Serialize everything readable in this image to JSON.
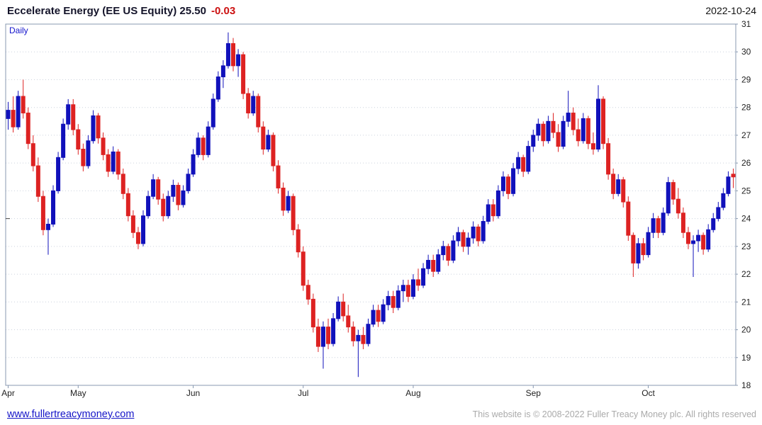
{
  "header": {
    "title": "Eccelerate Energy (EE US Equity) 25.50",
    "change": "-0.03",
    "date": "2022-10-24"
  },
  "footer": {
    "site": "www.fullertreacymoney.com",
    "copyright": "This website is © 2008-2022 Fuller Treacy Money plc. All rights reserved"
  },
  "chart_data": {
    "type": "candlestick",
    "title": "Eccelerate Energy (EE US Equity)",
    "interval": "Daily",
    "last_price": 25.5,
    "change": -0.03,
    "date": "2022-10-24",
    "ylim": [
      18,
      31
    ],
    "y_ticks": [
      18,
      19,
      20,
      21,
      22,
      23,
      24,
      25,
      26,
      27,
      28,
      29,
      30,
      31
    ],
    "left_axis_tick": 24,
    "x_labels": [
      "Apr",
      "May",
      "Jun",
      "Jul",
      "Aug",
      "Sep",
      "Oct"
    ],
    "month_start_indices": [
      0,
      14,
      37,
      59,
      81,
      105,
      128
    ],
    "grid": "horizontal-dotted",
    "legend_position": "none",
    "colors": {
      "up": "#1111bb",
      "down": "#dd2222",
      "frame": "#8898b0",
      "grid": "#ccd2de",
      "accent": "#1414cc"
    },
    "ohlc": [
      [
        27.6,
        28.2,
        27.2,
        27.9
      ],
      [
        27.9,
        28.4,
        27.1,
        27.3
      ],
      [
        27.3,
        28.6,
        27.2,
        28.4
      ],
      [
        28.4,
        29.0,
        27.6,
        27.8
      ],
      [
        27.8,
        28.0,
        26.5,
        26.7
      ],
      [
        26.7,
        27.0,
        25.7,
        25.9
      ],
      [
        25.9,
        26.2,
        24.6,
        24.8
      ],
      [
        24.8,
        25.0,
        23.4,
        23.6
      ],
      [
        23.6,
        24.0,
        22.7,
        23.8
      ],
      [
        23.8,
        25.2,
        23.7,
        25.0
      ],
      [
        25.0,
        26.4,
        24.9,
        26.2
      ],
      [
        26.2,
        27.6,
        26.1,
        27.4
      ],
      [
        27.4,
        28.3,
        27.2,
        28.1
      ],
      [
        28.1,
        28.3,
        27.0,
        27.2
      ],
      [
        27.2,
        27.4,
        26.3,
        26.5
      ],
      [
        26.5,
        26.7,
        25.7,
        25.9
      ],
      [
        25.9,
        27.0,
        25.8,
        26.8
      ],
      [
        26.8,
        27.9,
        26.7,
        27.7
      ],
      [
        27.7,
        27.8,
        26.7,
        26.9
      ],
      [
        26.9,
        27.1,
        26.1,
        26.3
      ],
      [
        26.3,
        26.5,
        25.5,
        25.7
      ],
      [
        25.7,
        26.6,
        25.6,
        26.4
      ],
      [
        26.4,
        26.5,
        25.4,
        25.6
      ],
      [
        25.6,
        25.8,
        24.7,
        24.9
      ],
      [
        24.9,
        25.1,
        23.9,
        24.1
      ],
      [
        24.1,
        24.3,
        23.3,
        23.5
      ],
      [
        23.5,
        23.7,
        22.9,
        23.1
      ],
      [
        23.1,
        24.3,
        23.0,
        24.1
      ],
      [
        24.1,
        25.0,
        24.0,
        24.8
      ],
      [
        24.8,
        25.6,
        24.7,
        25.4
      ],
      [
        25.4,
        25.5,
        24.5,
        24.7
      ],
      [
        24.7,
        24.9,
        23.9,
        24.1
      ],
      [
        24.1,
        25.0,
        24.0,
        24.8
      ],
      [
        24.8,
        25.4,
        24.6,
        25.2
      ],
      [
        25.2,
        25.3,
        24.3,
        24.5
      ],
      [
        24.5,
        25.2,
        24.4,
        25.0
      ],
      [
        25.0,
        25.8,
        24.9,
        25.6
      ],
      [
        25.6,
        26.5,
        25.5,
        26.3
      ],
      [
        26.3,
        27.1,
        26.2,
        26.9
      ],
      [
        26.9,
        27.0,
        26.1,
        26.3
      ],
      [
        26.3,
        27.5,
        26.2,
        27.3
      ],
      [
        27.3,
        28.5,
        27.2,
        28.3
      ],
      [
        28.3,
        29.3,
        28.2,
        29.1
      ],
      [
        29.1,
        29.7,
        28.7,
        29.5
      ],
      [
        29.5,
        30.7,
        29.4,
        30.3
      ],
      [
        30.3,
        30.5,
        29.3,
        29.5
      ],
      [
        29.5,
        30.1,
        29.1,
        29.9
      ],
      [
        29.9,
        30.0,
        28.3,
        28.5
      ],
      [
        28.5,
        28.7,
        27.6,
        27.8
      ],
      [
        27.8,
        28.6,
        27.7,
        28.4
      ],
      [
        28.4,
        28.5,
        27.1,
        27.3
      ],
      [
        27.3,
        27.5,
        26.3,
        26.5
      ],
      [
        26.5,
        27.2,
        26.4,
        27.0
      ],
      [
        27.0,
        27.1,
        25.7,
        25.9
      ],
      [
        25.9,
        26.1,
        24.9,
        25.1
      ],
      [
        25.1,
        25.3,
        24.1,
        24.3
      ],
      [
        24.3,
        25.0,
        24.2,
        24.8
      ],
      [
        24.8,
        24.9,
        23.4,
        23.6
      ],
      [
        23.6,
        23.8,
        22.6,
        22.8
      ],
      [
        22.8,
        23.0,
        21.4,
        21.6
      ],
      [
        21.6,
        21.8,
        20.9,
        21.1
      ],
      [
        21.1,
        21.3,
        19.9,
        20.1
      ],
      [
        20.1,
        20.4,
        19.2,
        19.4
      ],
      [
        19.4,
        20.3,
        18.6,
        20.1
      ],
      [
        20.1,
        20.4,
        19.3,
        19.5
      ],
      [
        19.5,
        20.6,
        19.4,
        20.4
      ],
      [
        20.4,
        21.2,
        20.3,
        21.0
      ],
      [
        21.0,
        21.3,
        20.3,
        20.5
      ],
      [
        20.5,
        20.9,
        19.9,
        20.1
      ],
      [
        20.1,
        20.3,
        19.4,
        19.6
      ],
      [
        19.6,
        20.0,
        18.3,
        19.8
      ],
      [
        19.8,
        20.1,
        19.3,
        19.5
      ],
      [
        19.5,
        20.4,
        19.4,
        20.2
      ],
      [
        20.2,
        20.9,
        20.1,
        20.7
      ],
      [
        20.7,
        20.9,
        20.1,
        20.3
      ],
      [
        20.3,
        21.1,
        20.2,
        20.9
      ],
      [
        20.9,
        21.4,
        20.7,
        21.2
      ],
      [
        21.2,
        21.4,
        20.6,
        20.8
      ],
      [
        20.8,
        21.6,
        20.7,
        21.4
      ],
      [
        21.4,
        21.8,
        21.0,
        21.6
      ],
      [
        21.6,
        21.8,
        21.0,
        21.2
      ],
      [
        21.2,
        22.0,
        21.1,
        21.8
      ],
      [
        21.8,
        22.2,
        21.4,
        21.6
      ],
      [
        21.6,
        22.4,
        21.5,
        22.2
      ],
      [
        22.2,
        22.7,
        22.0,
        22.5
      ],
      [
        22.5,
        22.7,
        21.9,
        22.1
      ],
      [
        22.1,
        22.9,
        22.0,
        22.7
      ],
      [
        22.7,
        23.2,
        22.5,
        23.0
      ],
      [
        23.0,
        23.1,
        22.3,
        22.5
      ],
      [
        22.5,
        23.4,
        22.4,
        23.2
      ],
      [
        23.2,
        23.7,
        23.0,
        23.5
      ],
      [
        23.5,
        23.6,
        22.8,
        23.0
      ],
      [
        23.0,
        23.5,
        22.7,
        23.3
      ],
      [
        23.3,
        23.9,
        23.1,
        23.7
      ],
      [
        23.7,
        23.8,
        23.0,
        23.2
      ],
      [
        23.2,
        24.1,
        23.1,
        23.9
      ],
      [
        23.9,
        24.7,
        23.8,
        24.5
      ],
      [
        24.5,
        24.7,
        23.9,
        24.1
      ],
      [
        24.1,
        25.2,
        24.0,
        25.0
      ],
      [
        25.0,
        25.7,
        24.8,
        25.5
      ],
      [
        25.5,
        25.6,
        24.7,
        24.9
      ],
      [
        24.9,
        26.0,
        24.8,
        25.8
      ],
      [
        25.8,
        26.4,
        25.6,
        26.2
      ],
      [
        26.2,
        26.3,
        25.5,
        25.7
      ],
      [
        25.7,
        26.8,
        25.6,
        26.6
      ],
      [
        26.6,
        27.2,
        26.4,
        27.0
      ],
      [
        27.0,
        27.6,
        26.8,
        27.4
      ],
      [
        27.4,
        27.5,
        26.6,
        26.8
      ],
      [
        26.8,
        27.7,
        26.7,
        27.5
      ],
      [
        27.5,
        27.8,
        26.9,
        27.1
      ],
      [
        27.1,
        27.4,
        26.4,
        26.6
      ],
      [
        26.6,
        27.7,
        26.5,
        27.5
      ],
      [
        27.5,
        28.6,
        27.3,
        27.8
      ],
      [
        27.8,
        28.0,
        27.0,
        27.2
      ],
      [
        27.2,
        27.6,
        26.6,
        26.8
      ],
      [
        26.8,
        27.8,
        26.7,
        27.6
      ],
      [
        27.6,
        27.7,
        26.5,
        26.7
      ],
      [
        26.7,
        27.1,
        26.3,
        26.5
      ],
      [
        26.5,
        28.8,
        26.4,
        28.3
      ],
      [
        28.3,
        28.4,
        26.5,
        26.7
      ],
      [
        26.7,
        26.9,
        25.4,
        25.6
      ],
      [
        25.6,
        25.8,
        24.7,
        24.9
      ],
      [
        24.9,
        25.6,
        24.8,
        25.4
      ],
      [
        25.4,
        25.5,
        24.4,
        24.6
      ],
      [
        24.6,
        24.8,
        23.2,
        23.4
      ],
      [
        23.4,
        23.5,
        21.9,
        22.4
      ],
      [
        22.4,
        23.3,
        22.2,
        23.1
      ],
      [
        23.1,
        23.3,
        22.5,
        22.7
      ],
      [
        22.7,
        23.7,
        22.6,
        23.5
      ],
      [
        23.5,
        24.2,
        23.3,
        24.0
      ],
      [
        24.0,
        24.1,
        23.3,
        23.5
      ],
      [
        23.5,
        24.4,
        23.4,
        24.2
      ],
      [
        24.2,
        25.5,
        24.1,
        25.3
      ],
      [
        25.3,
        25.4,
        24.5,
        24.7
      ],
      [
        24.7,
        25.1,
        24.0,
        24.2
      ],
      [
        24.2,
        24.4,
        23.3,
        23.5
      ],
      [
        23.5,
        23.7,
        22.9,
        23.1
      ],
      [
        23.1,
        23.4,
        21.9,
        23.2
      ],
      [
        23.2,
        23.6,
        22.8,
        23.4
      ],
      [
        23.4,
        23.5,
        22.7,
        22.9
      ],
      [
        22.9,
        23.8,
        22.8,
        23.6
      ],
      [
        23.6,
        24.2,
        23.5,
        24.0
      ],
      [
        24.0,
        24.6,
        23.9,
        24.4
      ],
      [
        24.4,
        25.1,
        24.3,
        24.9
      ],
      [
        24.9,
        25.7,
        24.8,
        25.5
      ],
      [
        25.6,
        25.8,
        25.1,
        25.5
      ]
    ]
  }
}
